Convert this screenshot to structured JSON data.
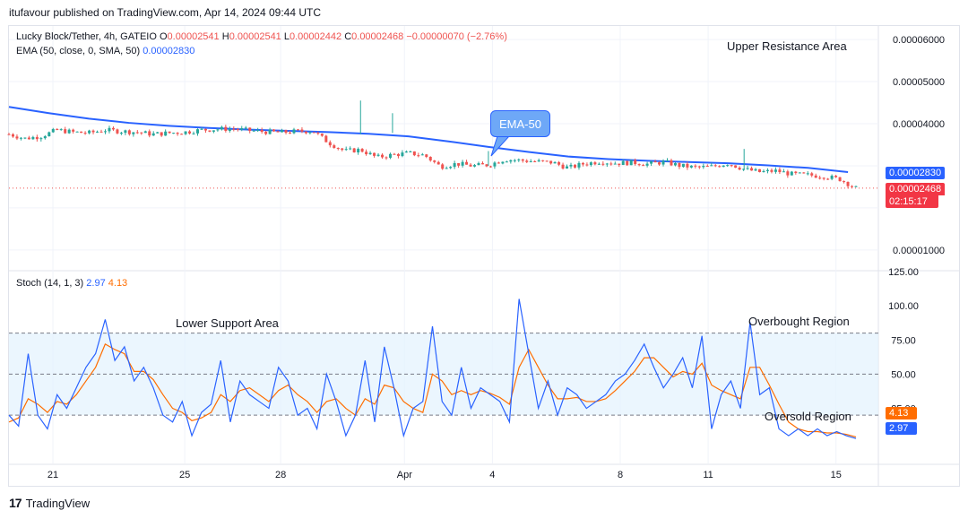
{
  "publisher": "itufavour published on TradingView.com, Apr 14, 2024 09:44 UTC",
  "legend": {
    "symbol": "Lucky Block/Tether, 4h, GATEIO",
    "o_label": "O",
    "o": "0.00002541",
    "h_label": "H",
    "h": "0.00002541",
    "l_label": "L",
    "l": "0.00002442",
    "c_label": "C",
    "c": "0.00002468",
    "change": "−0.00000070 (−2.76%)",
    "ema_label": "EMA (50, close, 0, SMA, 50)",
    "ema_value": "0.00002830"
  },
  "stoch_legend": {
    "label": "Stoch (14, 1, 3)",
    "k": "2.97",
    "d": "4.13"
  },
  "annotations": {
    "upper_resistance": "Upper Resistance Area",
    "lower_support": "Lower Support Area",
    "overbought": "Overbought Region",
    "oversold": "Oversold Region",
    "ema_callout": "EMA-50"
  },
  "price_tags": {
    "ema": "0.00002830",
    "last": "0.00002468",
    "countdown": "02:15:17"
  },
  "stoch_tags": {
    "d": "4.13",
    "k": "2.97"
  },
  "footer": {
    "brand": "TradingView"
  },
  "colors": {
    "up": "#26a69a",
    "down": "#ef5350",
    "ema": "#2962ff",
    "stoch_k": "#2962ff",
    "stoch_d": "#ff6d00",
    "band": "#e3f2fd"
  },
  "chart_data": [
    {
      "type": "candlestick",
      "title": "Lucky Block/Tether, 4h, GATEIO",
      "x_tick_labels": [
        "21",
        "25",
        "28",
        "Apr",
        "4",
        "8",
        "11",
        "15"
      ],
      "y_tick_labels": [
        "0.00006000",
        "0.00005000",
        "0.00004000",
        "0.00002830",
        "0.00002468",
        "0.00001000"
      ],
      "ylim": [
        5.5e-06,
        6.3e-05
      ],
      "grid": true,
      "series": [
        {
          "name": "EMA (50, close, 0, SMA, 50)",
          "type": "line",
          "points": [
            [
              0,
              4.4e-05
            ],
            [
              5,
              4.25e-05
            ],
            [
              10,
              4.12e-05
            ],
            [
              15,
              4.02e-05
            ],
            [
              20,
              3.95e-05
            ],
            [
              25,
              3.9e-05
            ],
            [
              30,
              3.86e-05
            ],
            [
              35,
              3.83e-05
            ],
            [
              40,
              3.8e-05
            ],
            [
              45,
              3.76e-05
            ],
            [
              50,
              3.7e-05
            ],
            [
              55,
              3.58e-05
            ],
            [
              60,
              3.45e-05
            ],
            [
              65,
              3.33e-05
            ],
            [
              70,
              3.22e-05
            ],
            [
              75,
              3.16e-05
            ],
            [
              80,
              3.12e-05
            ],
            [
              85,
              3.09e-05
            ],
            [
              90,
              3.06e-05
            ],
            [
              95,
              3.01e-05
            ],
            [
              100,
              2.95e-05
            ],
            [
              105,
              2.85e-05
            ]
          ]
        }
      ],
      "price_path": [
        [
          0,
          3.75e-05
        ],
        [
          2,
          3.65e-05
        ],
        [
          4,
          3.7e-05
        ],
        [
          6,
          3.85e-05
        ],
        [
          8,
          3.8e-05
        ],
        [
          10,
          3.78e-05
        ],
        [
          12,
          3.85e-05
        ],
        [
          14,
          3.82e-05
        ],
        [
          16,
          3.8e-05
        ],
        [
          18,
          3.75e-05
        ],
        [
          20,
          3.78e-05
        ],
        [
          22,
          3.8e-05
        ],
        [
          24,
          3.85e-05
        ],
        [
          26,
          3.87e-05
        ],
        [
          28,
          3.88e-05
        ],
        [
          30,
          3.84e-05
        ],
        [
          32,
          3.81e-05
        ],
        [
          34,
          3.79e-05
        ],
        [
          36,
          3.82e-05
        ],
        [
          38,
          3.83e-05
        ],
        [
          40,
          3.55e-05
        ],
        [
          42,
          3.35e-05
        ],
        [
          44,
          3.38e-05
        ],
        [
          46,
          3.2e-05
        ],
        [
          48,
          3.26e-05
        ],
        [
          50,
          3.3e-05
        ],
        [
          52,
          3.25e-05
        ],
        [
          54,
          2.98e-05
        ],
        [
          56,
          3.05e-05
        ],
        [
          58,
          3e-05
        ],
        [
          60,
          3.02e-05
        ],
        [
          62,
          3.15e-05
        ],
        [
          64,
          3.13e-05
        ],
        [
          66,
          3.1e-05
        ],
        [
          68,
          3.08e-05
        ],
        [
          70,
          2.95e-05
        ],
        [
          72,
          3.05e-05
        ],
        [
          74,
          3.1e-05
        ],
        [
          76,
          3.06e-05
        ],
        [
          78,
          3.08e-05
        ],
        [
          80,
          3.04e-05
        ],
        [
          82,
          3.09e-05
        ],
        [
          84,
          3e-05
        ],
        [
          86,
          2.96e-05
        ],
        [
          88,
          2.98e-05
        ],
        [
          90,
          3.06e-05
        ],
        [
          92,
          2.92e-05
        ],
        [
          94,
          2.85e-05
        ],
        [
          96,
          2.88e-05
        ],
        [
          98,
          2.8e-05
        ],
        [
          100,
          2.78e-05
        ],
        [
          102,
          2.75e-05
        ],
        [
          104,
          2.68e-05
        ],
        [
          106,
          2.47e-05
        ]
      ]
    },
    {
      "type": "line",
      "title": "Stoch (14, 1, 3)",
      "y_tick_labels": [
        "125.00",
        "100.00",
        "75.00",
        "50.00",
        "25.00"
      ],
      "ylim": [
        -12,
        125
      ],
      "levels": [
        80,
        50,
        20
      ],
      "series": [
        {
          "name": "K",
          "values": [
            20,
            12,
            65,
            20,
            10,
            35,
            25,
            40,
            55,
            65,
            90,
            60,
            70,
            45,
            55,
            40,
            20,
            15,
            30,
            5,
            22,
            28,
            60,
            15,
            45,
            35,
            30,
            25,
            55,
            45,
            20,
            25,
            10,
            50,
            30,
            5,
            20,
            60,
            15,
            70,
            40,
            5,
            25,
            30,
            85,
            30,
            20,
            55,
            25,
            40,
            35,
            30,
            15,
            105,
            65,
            25,
            45,
            20,
            40,
            35,
            25,
            30,
            35,
            45,
            50,
            60,
            72,
            55,
            40,
            50,
            62,
            40,
            78,
            10,
            35,
            45,
            25,
            88,
            35,
            40,
            10,
            5,
            10,
            5,
            10,
            5,
            8,
            5,
            2.97
          ]
        },
        {
          "name": "D",
          "values": [
            15,
            18,
            32,
            28,
            22,
            30,
            28,
            35,
            45,
            55,
            72,
            68,
            65,
            52,
            52,
            46,
            35,
            25,
            22,
            16,
            18,
            22,
            35,
            30,
            38,
            40,
            35,
            30,
            38,
            42,
            35,
            30,
            22,
            30,
            32,
            25,
            20,
            32,
            28,
            42,
            40,
            30,
            25,
            22,
            50,
            45,
            35,
            38,
            35,
            38,
            36,
            33,
            28,
            55,
            68,
            55,
            42,
            32,
            32,
            33,
            30,
            30,
            32,
            38,
            45,
            52,
            62,
            62,
            55,
            48,
            52,
            50,
            58,
            42,
            38,
            35,
            32,
            55,
            55,
            42,
            28,
            15,
            10,
            8,
            8,
            7,
            7,
            6,
            4.13
          ]
        }
      ]
    }
  ]
}
